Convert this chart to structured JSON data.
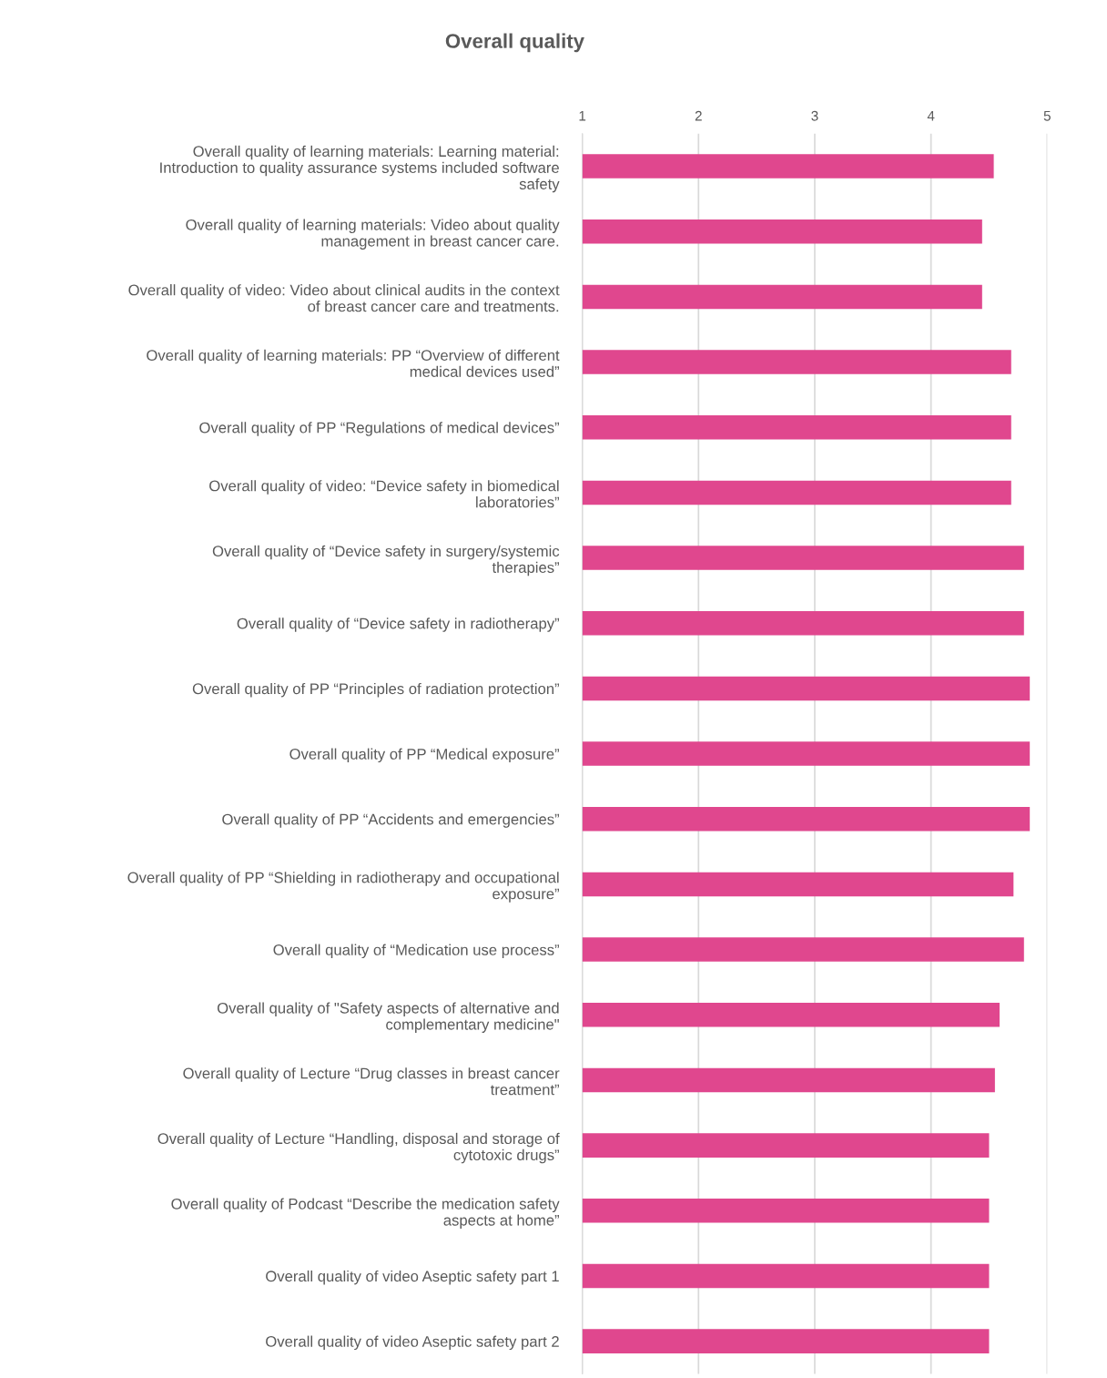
{
  "chart_data": {
    "type": "bar",
    "orientation": "horizontal",
    "title": "Overall quality",
    "categories": [
      "Overall quality of learning materials: Learning material:\nIntroduction to quality assurance systems included software\nsafety",
      "Overall quality of learning materials: Video about quality\nmanagement in breast cancer care.",
      "Overall quality of video: Video about clinical audits in the context\nof breast cancer care and treatments.",
      "Overall quality of learning materials: PP “Overview of different\nmedical devices used”",
      "Overall quality of PP “Regulations of medical devices”",
      "Overall quality of video: “Device safety in biomedical\nlaboratories”",
      "Overall quality of “Device safety in surgery/systemic\ntherapies”",
      "Overall quality of “Device safety in radiotherapy”",
      "Overall quality of PP “Principles of radiation protection”",
      "Overall quality of PP “Medical exposure”",
      "Overall quality of PP “Accidents and emergencies”",
      "Overall quality of PP “Shielding in radiotherapy and occupational\nexposure”",
      "Overall quality of “Medication use process”",
      "Overall quality of \"Safety aspects of alternative and\ncomplementary medicine\"",
      "Overall quality of Lecture “Drug classes in breast cancer\ntreatment”",
      "Overall quality of Lecture “Handling, disposal and storage of\ncytotoxic drugs”",
      "Overall quality of Podcast “Describe the medication safety\naspects at home”",
      "Overall quality of video Aseptic safety part 1",
      "Overall quality of video Aseptic safety part 2"
    ],
    "values": [
      4.54,
      4.44,
      4.44,
      4.69,
      4.69,
      4.69,
      4.8,
      4.8,
      4.85,
      4.85,
      4.85,
      4.71,
      4.8,
      4.59,
      4.55,
      4.5,
      4.5,
      4.5,
      4.5
    ],
    "color": "#e0478e",
    "xlim": [
      1,
      5
    ],
    "xticks": [
      1,
      2,
      3,
      4,
      5
    ],
    "grid": "x"
  }
}
